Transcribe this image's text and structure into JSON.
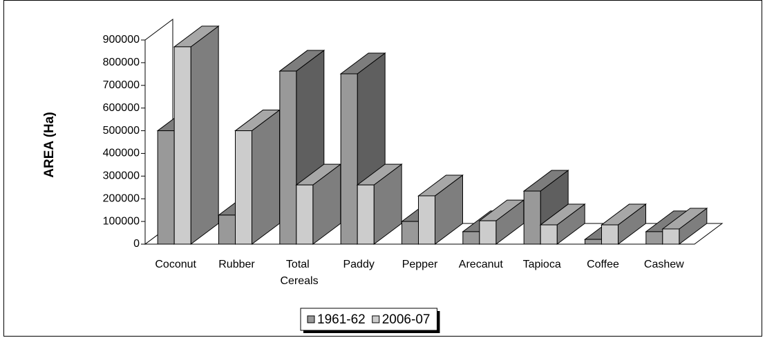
{
  "chart_data": {
    "type": "bar3d",
    "y_label": "AREA (Ha)",
    "categories": [
      "Coconut",
      "Rubber",
      "Total Cereals",
      "Paddy",
      "Pepper",
      "Arecanut",
      "Tapioca",
      "Coffee",
      "Cashew"
    ],
    "series": [
      {
        "name": "1961-62",
        "color": "#999999",
        "values": [
          500000,
          128000,
          763000,
          751000,
          100000,
          55000,
          234000,
          21000,
          55000
        ]
      },
      {
        "name": "2006-07",
        "color": "#cccccc",
        "values": [
          870000,
          500000,
          261000,
          261000,
          213000,
          103000,
          85000,
          85000,
          67000
        ]
      }
    ],
    "ylim": [
      0,
      900000
    ],
    "yticks": [
      0,
      100000,
      200000,
      300000,
      400000,
      500000,
      600000,
      700000,
      800000,
      900000
    ],
    "legend": "bottom"
  }
}
